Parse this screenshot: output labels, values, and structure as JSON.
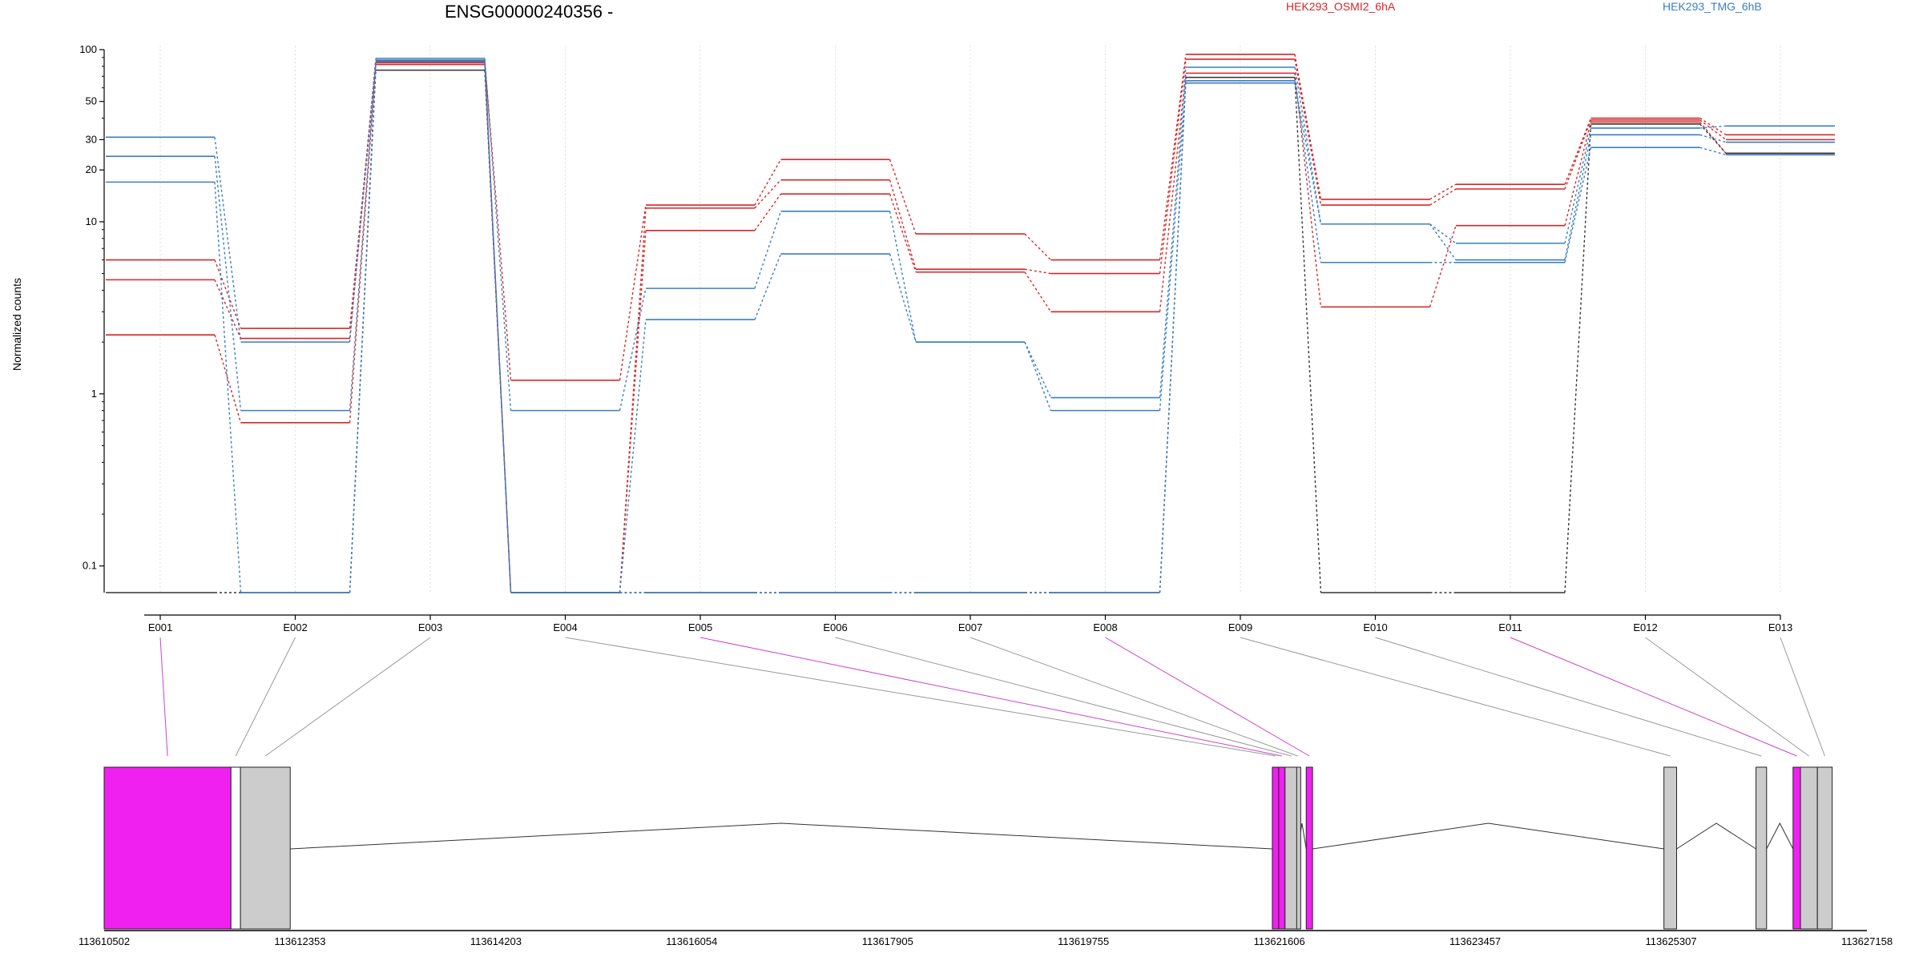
{
  "chart_data": {
    "type": "line",
    "title": "ENSG00000240356 -",
    "ylabel": "Normalized counts",
    "xlabel": "",
    "yscale": "log",
    "ylim": [
      0.07,
      100
    ],
    "y_ticks": [
      "0.1",
      "1",
      "10",
      "20",
      "30",
      "50",
      "100"
    ],
    "grid": "vertical dotted at exon centers",
    "legend_placement": "top-right",
    "categories": [
      "E001",
      "E002",
      "E003",
      "E004",
      "E005",
      "E006",
      "E007",
      "E008",
      "E009",
      "E010",
      "E011",
      "E012",
      "E013"
    ],
    "series": [
      {
        "name": "HEK293_OSMI2_6hA",
        "color": "#d62728",
        "values": [
          6.0,
          2.4,
          86,
          1.2,
          12.5,
          23,
          8.5,
          6.0,
          94,
          13.5,
          16.5,
          40,
          32
        ]
      },
      {
        "color": "#d62728",
        "values": [
          4.6,
          2.1,
          84,
          0.07,
          12.0,
          17.5,
          5.3,
          5.0,
          88,
          12.5,
          15.5,
          39,
          30
        ]
      },
      {
        "color": "#d62728",
        "values": [
          2.2,
          0.68,
          82,
          0.07,
          8.9,
          14.5,
          5.1,
          3.0,
          73,
          3.2,
          9.5,
          38,
          25
        ]
      },
      {
        "color": "#333333",
        "values": [
          0.07,
          0.07,
          76,
          0.07,
          0.07,
          0.07,
          0.07,
          0.07,
          69,
          0.07,
          0.07,
          37,
          25
        ]
      },
      {
        "name": "HEK293_TMG_6hB",
        "color": "#3a7fc1",
        "values": [
          31,
          2.0,
          89,
          0.8,
          4.1,
          11.5,
          2.0,
          0.95,
          79,
          9.7,
          7.5,
          35,
          36
        ]
      },
      {
        "color": "#3a7fc1",
        "values": [
          24,
          0.8,
          87,
          0.07,
          2.7,
          6.5,
          2.0,
          0.8,
          64,
          9.7,
          6.0,
          32,
          29
        ]
      },
      {
        "color": "#3a7fc1",
        "values": [
          17,
          0.07,
          85,
          0.07,
          0.07,
          0.07,
          0.07,
          0.07,
          66,
          5.8,
          5.8,
          27,
          24.5
        ]
      }
    ],
    "gene_model": {
      "genomic_ticks": [
        "113610502",
        "113612353",
        "113614203",
        "113616054",
        "113617905",
        "113619755",
        "113621606",
        "113623457",
        "113625307",
        "113627158"
      ],
      "genomic_start": 113610502,
      "genomic_end": 113627158,
      "exons": [
        {
          "id": "E001",
          "start": 113610502,
          "end": 113611700,
          "color": "#f020f0"
        },
        {
          "id": "E002",
          "start": 113611700,
          "end": 113611790,
          "color": "#ffffff"
        },
        {
          "id": "E003",
          "start": 113611790,
          "end": 113612260,
          "color": "#cccccc"
        },
        {
          "id": "E004",
          "start": 113621540,
          "end": 113621600,
          "color": "#f020f0"
        },
        {
          "id": "E005",
          "start": 113621600,
          "end": 113621660,
          "color": "#f020f0"
        },
        {
          "id": "E006",
          "start": 113621660,
          "end": 113621780,
          "color": "#cccccc"
        },
        {
          "id": "E007",
          "start": 113621770,
          "end": 113621790,
          "color": "#cccccc"
        },
        {
          "id": "E008",
          "start": 113621860,
          "end": 113621920,
          "color": "#f020f0"
        },
        {
          "id": "E009",
          "start": 113625240,
          "end": 113625360,
          "color": "#cccccc"
        },
        {
          "id": "E010",
          "start": 113626110,
          "end": 113626210,
          "color": "#cccccc"
        },
        {
          "id": "E011",
          "start": 113626460,
          "end": 113626530,
          "color": "#f020f0"
        },
        {
          "id": "E012",
          "start": 113626530,
          "end": 113626690,
          "color": "#cccccc"
        },
        {
          "id": "E013",
          "start": 113626690,
          "end": 113626830,
          "color": "#cccccc"
        }
      ],
      "introns": [
        {
          "from": 113612260,
          "to": 113621540
        },
        {
          "from": 113621780,
          "to": 113621860
        },
        {
          "from": 113621920,
          "to": 113625240
        },
        {
          "from": 113625360,
          "to": 113626110
        },
        {
          "from": 113626210,
          "to": 113626460
        }
      ],
      "connector_colors": [
        "#cc44cc",
        "#999999",
        "#999999",
        "#999999",
        "#cc44cc",
        "#999999",
        "#999999",
        "#cc44cc",
        "#999999",
        "#999999",
        "#cc44cc",
        "#999999",
        "#999999"
      ]
    }
  }
}
